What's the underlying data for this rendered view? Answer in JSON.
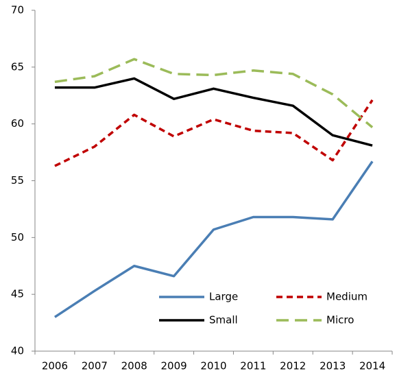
{
  "chart_data": {
    "type": "line",
    "categories": [
      "2006",
      "2007",
      "2008",
      "2009",
      "2010",
      "2011",
      "2012",
      "2013",
      "2014"
    ],
    "series": [
      {
        "name": "Large",
        "color": "#4a7eb4",
        "dash": "solid",
        "values": [
          43.0,
          45.3,
          47.5,
          46.6,
          50.7,
          51.8,
          51.8,
          51.6,
          56.7
        ]
      },
      {
        "name": "Medium",
        "color": "#c00000",
        "dash": "short",
        "values": [
          56.3,
          58.0,
          60.8,
          58.9,
          60.4,
          59.4,
          59.2,
          56.8,
          62.1
        ]
      },
      {
        "name": "Small",
        "color": "#000000",
        "dash": "solid",
        "values": [
          63.2,
          63.2,
          64.0,
          62.2,
          63.1,
          62.3,
          61.6,
          59.0,
          58.1
        ]
      },
      {
        "name": "Micro",
        "color": "#9bbb59",
        "dash": "long",
        "values": [
          63.7,
          64.2,
          65.7,
          64.4,
          64.3,
          64.7,
          64.4,
          62.6,
          59.7
        ]
      }
    ],
    "ylim": [
      40,
      70
    ],
    "yticks": [
      40,
      45,
      50,
      55,
      60,
      65,
      70
    ],
    "grid": false,
    "legend": "lower-right"
  }
}
